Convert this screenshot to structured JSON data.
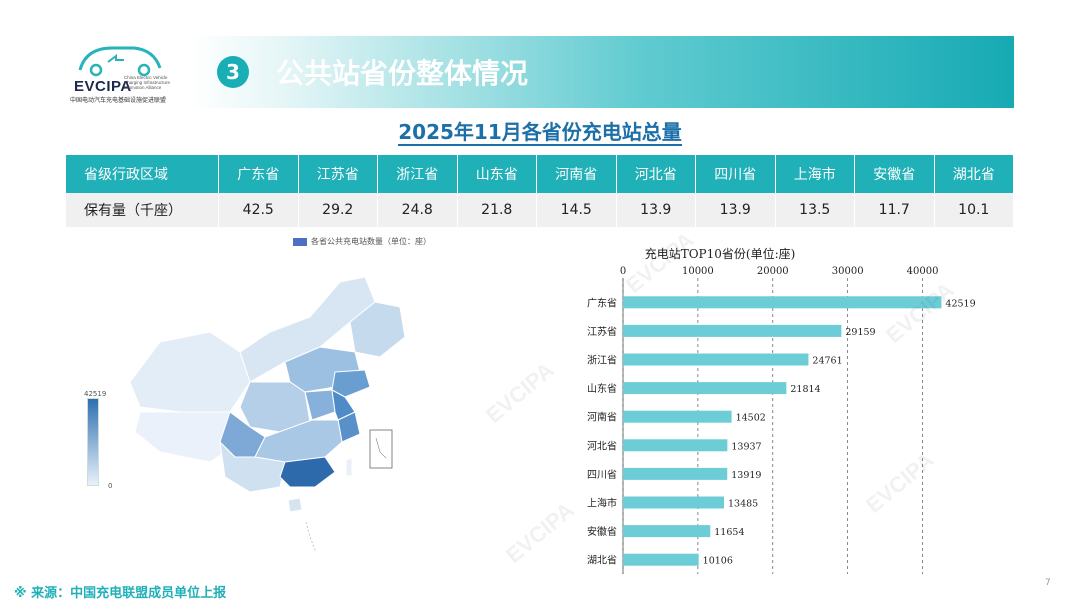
{
  "header": {
    "logo_text": "EVCIPA",
    "logo_subtitle": "China Electric Vehicle Charging Infrastructure Promotion Alliance",
    "logo_cn": "中国电动汽车充电基础设施促进联盟",
    "section_number": "3",
    "section_title": "公共站省份整体情况"
  },
  "table": {
    "title": "2025年11月各省份充电站总量",
    "row_header_label": "省级行政区域",
    "value_label": "保有量（千座）",
    "provinces": [
      "广东省",
      "江苏省",
      "浙江省",
      "山东省",
      "河南省",
      "河北省",
      "四川省",
      "上海市",
      "安徽省",
      "湖北省"
    ],
    "values": [
      "42.5",
      "29.2",
      "24.8",
      "21.8",
      "14.5",
      "13.9",
      "13.9",
      "13.5",
      "11.7",
      "10.1"
    ]
  },
  "map": {
    "legend_label": "各省公共充电站数量（单位：座）",
    "visualmap_max": "42519",
    "visualmap_min": "0",
    "colors": {
      "low": "#e6eff9",
      "high": "#2c6aab"
    }
  },
  "chart_data": {
    "type": "bar",
    "orientation": "horizontal",
    "title": "充电站TOP10省份(单位:座)",
    "categories": [
      "广东省",
      "江苏省",
      "浙江省",
      "山东省",
      "河南省",
      "河北省",
      "四川省",
      "上海市",
      "安徽省",
      "湖北省"
    ],
    "values": [
      42519,
      29159,
      24761,
      21814,
      14502,
      13937,
      13919,
      13485,
      11654,
      10106
    ],
    "xlim": [
      0,
      45000
    ],
    "x_ticks": [
      0,
      10000,
      20000,
      30000,
      40000
    ],
    "bar_color": "#6ccdd6",
    "grid": true
  },
  "footer": {
    "source": "※ 来源：中国充电联盟成员单位上报",
    "page_number": "7"
  },
  "watermark": "EVCIPA"
}
